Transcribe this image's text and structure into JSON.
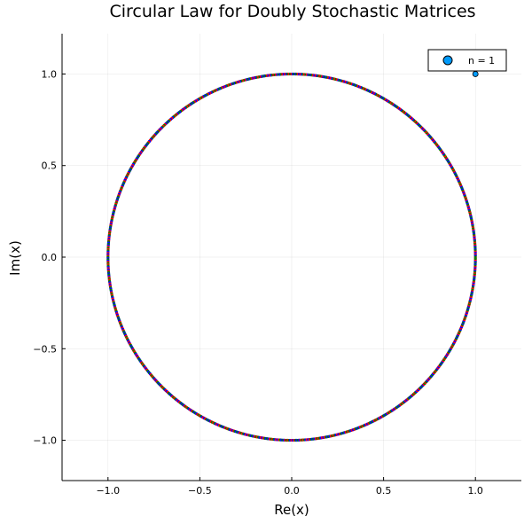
{
  "chart_data": {
    "type": "scatter",
    "title": "Circular Law for Doubly Stochastic Matrices",
    "xlabel": "Re(x)",
    "ylabel": "Im(x)",
    "xlim": [
      -1.25,
      1.25
    ],
    "ylim": [
      -1.22,
      1.22
    ],
    "xticks": [
      -1.0,
      -0.5,
      0.0,
      0.5,
      1.0
    ],
    "xtick_labels": [
      "−1.0",
      "−0.5",
      "0.0",
      "0.5",
      "1.0"
    ],
    "yticks": [
      -1.0,
      -0.5,
      0.0,
      0.5,
      1.0
    ],
    "ytick_labels": [
      "−1.0",
      "−0.5",
      "0.0",
      "0.5",
      "1.0"
    ],
    "grid": true,
    "legend": {
      "placement": "top-right",
      "entries": [
        {
          "label": "n = 1",
          "color": "#009AFA"
        }
      ]
    },
    "series": [
      {
        "name": "n = 1",
        "color": "#009AFA",
        "points": [
          {
            "x": 1.0,
            "y": 1.0
          }
        ]
      },
      {
        "description_free": true,
        "kind": "unit-circle-eigenvalues",
        "radius": 1.0,
        "point_count": 900,
        "colors": [
          "#FF0000",
          "#008000",
          "#0000FF"
        ]
      }
    ]
  }
}
